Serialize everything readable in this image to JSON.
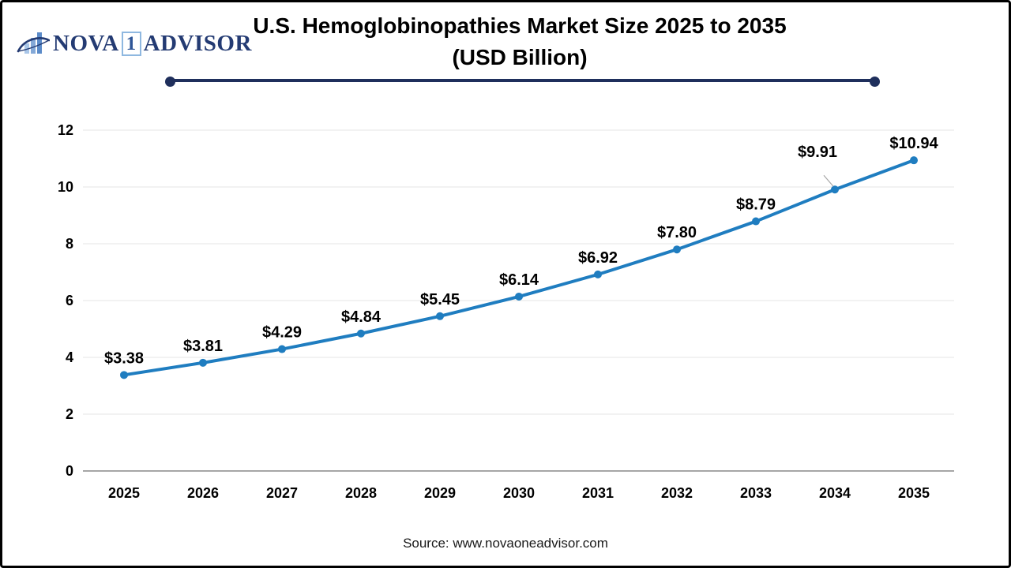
{
  "logo": {
    "icon": "bar-chart-swoosh-icon",
    "name_part1": "NOVA",
    "name_badge": "1",
    "name_part2": "ADVISOR"
  },
  "title": {
    "line1": "U.S. Hemoglobinopathies Market Size 2025 to 2035",
    "line2": "(USD Billion)"
  },
  "source_text": "Source: www.novaoneadvisor.com",
  "chart_data": {
    "type": "line",
    "title": "U.S. Hemoglobinopathies Market Size 2025 to 2035 (USD Billion)",
    "categories": [
      "2025",
      "2026",
      "2027",
      "2028",
      "2029",
      "2030",
      "2031",
      "2032",
      "2033",
      "2034",
      "2035"
    ],
    "series": [
      {
        "name": "U.S. Hemoglobinopathies Market Size (USD Billion)",
        "values": [
          3.38,
          3.81,
          4.29,
          4.84,
          5.45,
          6.14,
          6.92,
          7.8,
          8.79,
          9.91,
          10.94
        ]
      }
    ],
    "data_labels": [
      "$3.38",
      "$3.81",
      "$4.29",
      "$4.84",
      "$5.45",
      "$6.14",
      "$6.92",
      "$7.80",
      "$8.79",
      "$9.91",
      "$10.94"
    ],
    "xlabel": "",
    "ylabel": "",
    "ylim": [
      0,
      12
    ],
    "yticks": [
      0,
      2,
      4,
      6,
      8,
      10,
      12
    ],
    "grid": true,
    "legend_position": "none",
    "colors": {
      "line": "#1F7DC0",
      "marker": "#1F7DC0",
      "gridline": "#E4E4E4",
      "axis_line": "#A6A6A6",
      "tick_label": "#000000",
      "data_label": "#000000",
      "title_rule": "#1F2F5C",
      "logo_navy": "#243B73",
      "logo_blue": "#7FA8D9"
    }
  }
}
